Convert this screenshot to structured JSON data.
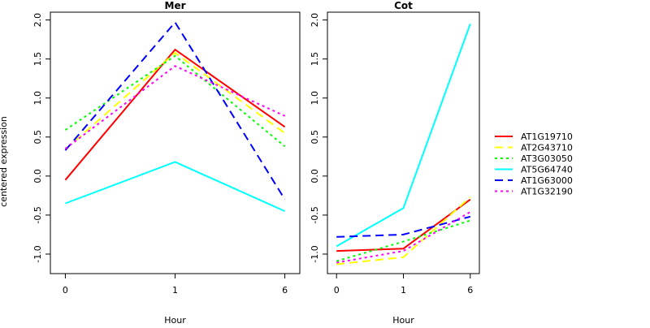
{
  "chart_data": {
    "type": "line",
    "ylabel": "centered expression",
    "colors": {
      "AT1G19710": "#ff0000",
      "AT2G43710": "#ffff00",
      "AT3G03050": "#00ff00",
      "AT5G64740": "#00ffff",
      "AT1G63000": "#0000ff",
      "AT1G32190": "#ff00ff"
    },
    "line_styles": {
      "AT1G19710": "solid",
      "AT2G43710": "dashed",
      "AT3G03050": "dotted",
      "AT5G64740": "solid",
      "AT1G63000": "dashed",
      "AT1G32190": "dotted"
    },
    "legend": [
      "AT1G19710",
      "AT2G43710",
      "AT3G03050",
      "AT5G64740",
      "AT1G63000",
      "AT1G32190"
    ],
    "legend_position": "right",
    "panels": [
      {
        "title": "Mer",
        "xlabel": "Hour",
        "categories": [
          "0",
          "1",
          "6"
        ],
        "ylim": [
          -1.25,
          2.1
        ],
        "yticks": [
          "-1.0",
          "-0.5",
          "0.0",
          "0.5",
          "1.0",
          "1.5",
          "2.0"
        ],
        "series": [
          {
            "name": "AT1G19710",
            "values": [
              -0.05,
              1.62,
              0.63
            ]
          },
          {
            "name": "AT2G43710",
            "values": [
              0.34,
              1.58,
              0.55
            ]
          },
          {
            "name": "AT3G03050",
            "values": [
              0.59,
              1.54,
              0.38
            ]
          },
          {
            "name": "AT5G64740",
            "values": [
              -0.35,
              0.18,
              -0.45
            ]
          },
          {
            "name": "AT1G63000",
            "values": [
              0.33,
              1.97,
              -0.3
            ]
          },
          {
            "name": "AT1G32190",
            "values": [
              0.35,
              1.41,
              0.77
            ]
          }
        ]
      },
      {
        "title": "Cot",
        "xlabel": "Hour",
        "categories": [
          "0",
          "1",
          "6"
        ],
        "ylim": [
          -1.25,
          2.1
        ],
        "yticks": [
          "-1.0",
          "-0.5",
          "0.0",
          "0.5",
          "1.0",
          "1.5",
          "2.0"
        ],
        "series": [
          {
            "name": "AT1G19710",
            "values": [
              -0.96,
              -0.93,
              -0.3
            ]
          },
          {
            "name": "AT2G43710",
            "values": [
              -1.13,
              -1.04,
              -0.27
            ]
          },
          {
            "name": "AT3G03050",
            "values": [
              -1.09,
              -0.84,
              -0.57
            ]
          },
          {
            "name": "AT5G64740",
            "values": [
              -0.9,
              -0.41,
              1.95
            ]
          },
          {
            "name": "AT1G63000",
            "values": [
              -0.78,
              -0.75,
              -0.52
            ]
          },
          {
            "name": "AT1G32190",
            "values": [
              -1.11,
              -0.96,
              -0.46
            ]
          }
        ]
      }
    ]
  }
}
